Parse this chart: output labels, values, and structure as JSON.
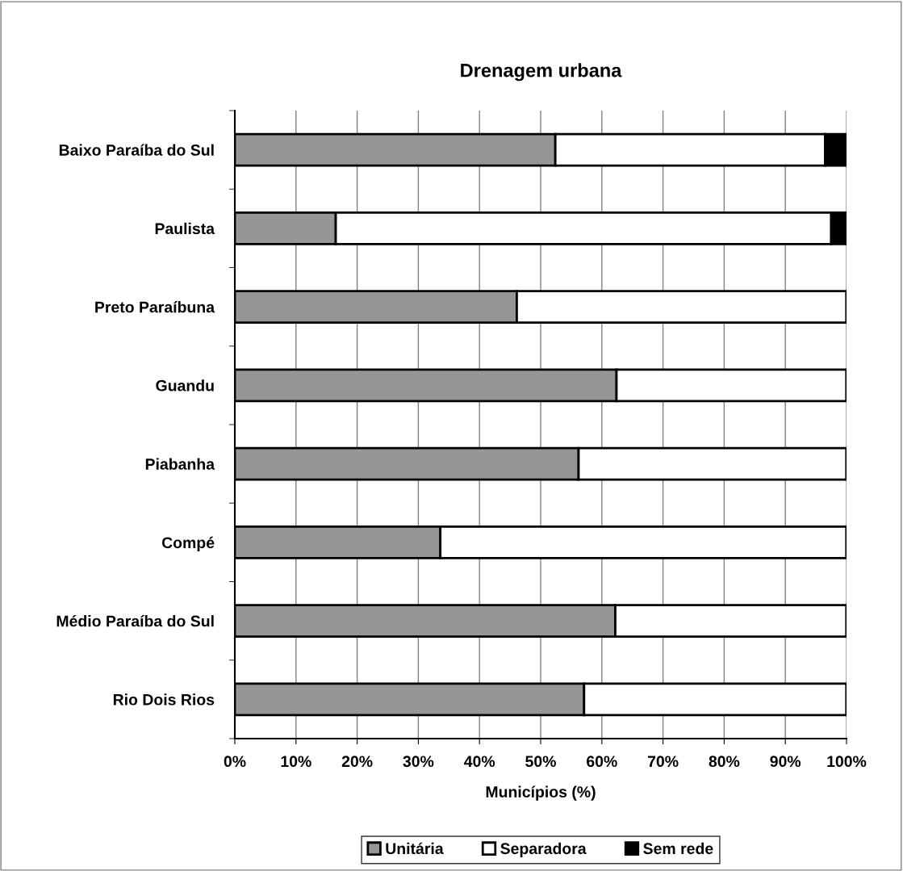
{
  "chart_data": {
    "type": "bar",
    "orientation": "horizontal",
    "stacked": true,
    "title": "Drenagem urbana",
    "xlabel": "Municípios (%)",
    "categories": [
      "Baixo Paraíba do Sul",
      "Paulista",
      "Preto Paraíbuna",
      "Guandu",
      "Piabanha",
      "Compé",
      "Médio Paraíba do Sul",
      "Rio Dois Rios"
    ],
    "series": [
      {
        "name": "Unitária",
        "color": "#969696",
        "values": [
          52.4,
          16.5,
          46.1,
          62.4,
          56.2,
          33.6,
          62.2,
          57.1
        ]
      },
      {
        "name": "Separadora",
        "color": "#ffffff",
        "values": [
          44.1,
          81.0,
          53.9,
          37.6,
          43.8,
          66.4,
          37.8,
          42.9
        ]
      },
      {
        "name": "Sem rede",
        "color": "#000000",
        "values": [
          3.5,
          2.5,
          0,
          0,
          0,
          0,
          0,
          0
        ]
      }
    ],
    "xlim": [
      0,
      100
    ],
    "xticks": [
      {
        "value": 0,
        "label": "0%"
      },
      {
        "value": 10,
        "label": "10%"
      },
      {
        "value": 20,
        "label": "20%"
      },
      {
        "value": 30,
        "label": "30%"
      },
      {
        "value": 40,
        "label": "40%"
      },
      {
        "value": 50,
        "label": "50%"
      },
      {
        "value": 60,
        "label": "60%"
      },
      {
        "value": 70,
        "label": "70%"
      },
      {
        "value": 80,
        "label": "80%"
      },
      {
        "value": 90,
        "label": "90%"
      },
      {
        "value": 100,
        "label": "100%"
      }
    ],
    "grid": "x",
    "legend": "bottom"
  }
}
